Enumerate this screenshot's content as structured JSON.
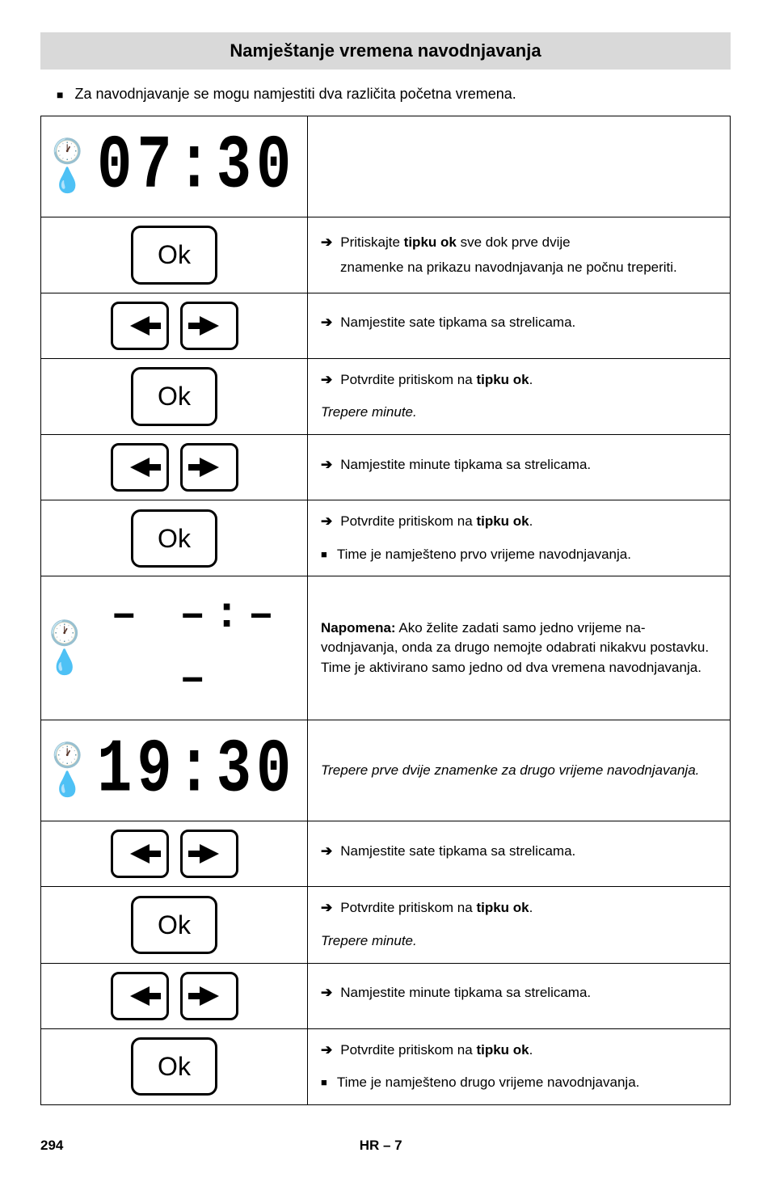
{
  "header": "Namještanje vremena navodnjavanja",
  "intro": "Za navodnjavanje se mogu namjestiti dva različita početna vremena.",
  "seg1": "07:30",
  "seg2": "19:30",
  "dashes": "– –:– –",
  "r": {
    "a1": "Pritiskajte tipku ok sve dok prve dvije",
    "a1b": "znamenke na prikazu navodnjavanja ne počnu tre­periti.",
    "b": "Namjestite sate tipkama sa strelicama.",
    "c": "Potvrdite pritiskom na tipku ok.",
    "c_it": "Trepere minute.",
    "d": "Namjestite minute tipkama sa strelicama.",
    "e_sq": "Time je namješteno prvo vrijeme navodnjavanja.",
    "f": "Napomena: Ako želite zadati samo jedno vrijeme na­vodnjavanja, onda za drugo nemojte odabrati nikakvu postavku. Time je aktivirano samo jedno od dva vre­mena navodnjavanja.",
    "g_it": "Trepere prve dvije znamenke za drugo vrijeme navodnjavanja.",
    "j_sq": "Time je namješteno drugo vrijeme navodnjavanja."
  },
  "footer": {
    "page": "294",
    "code": "HR – 7"
  }
}
